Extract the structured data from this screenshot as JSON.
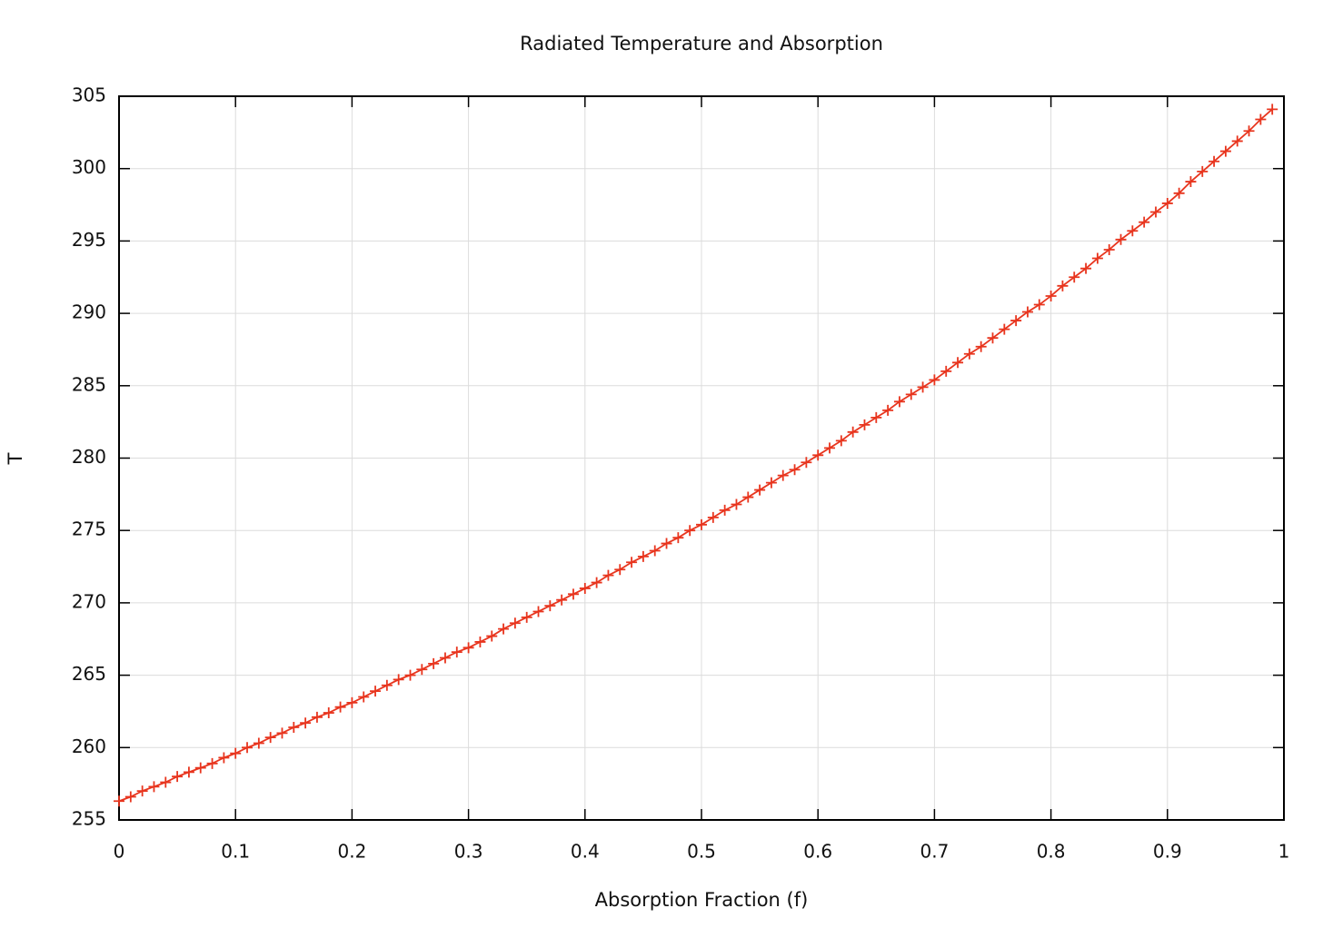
{
  "chart_data": {
    "type": "line",
    "title": "Radiated Temperature and Absorption",
    "xlabel": "Absorption Fraction (f)",
    "ylabel": "T",
    "x": [
      0,
      0.01,
      0.02,
      0.03,
      0.04,
      0.05,
      0.06,
      0.07,
      0.08,
      0.09,
      0.1,
      0.11,
      0.12,
      0.13,
      0.14,
      0.15,
      0.16,
      0.17,
      0.18,
      0.19,
      0.2,
      0.21,
      0.22,
      0.23,
      0.24,
      0.25,
      0.26,
      0.27,
      0.28,
      0.29,
      0.3,
      0.31,
      0.32,
      0.33,
      0.34,
      0.35,
      0.36,
      0.37,
      0.38,
      0.39,
      0.4,
      0.41,
      0.42,
      0.43,
      0.44,
      0.45,
      0.46,
      0.47,
      0.48,
      0.49,
      0.5,
      0.51,
      0.52,
      0.53,
      0.54,
      0.55,
      0.56,
      0.57,
      0.58,
      0.59,
      0.6,
      0.61,
      0.62,
      0.63,
      0.64,
      0.65,
      0.66,
      0.67,
      0.68,
      0.69,
      0.7,
      0.71,
      0.72,
      0.73,
      0.74,
      0.75,
      0.76,
      0.77,
      0.78,
      0.79,
      0.8,
      0.81,
      0.82,
      0.83,
      0.84,
      0.85,
      0.86,
      0.87,
      0.88,
      0.89,
      0.9,
      0.91,
      0.92,
      0.93,
      0.94,
      0.95,
      0.96,
      0.97,
      0.98,
      0.99
    ],
    "series": [
      {
        "color": "#e8351e",
        "marker": "plus",
        "values": [
          256.3,
          256.6,
          257.0,
          257.3,
          257.6,
          258.0,
          258.3,
          258.6,
          258.9,
          259.3,
          259.6,
          260.0,
          260.3,
          260.7,
          261.0,
          261.4,
          261.7,
          262.1,
          262.4,
          262.8,
          263.1,
          263.5,
          263.9,
          264.3,
          264.7,
          265.0,
          265.4,
          265.8,
          266.2,
          266.6,
          266.9,
          267.3,
          267.7,
          268.2,
          268.6,
          269.0,
          269.4,
          269.8,
          270.2,
          270.6,
          271.0,
          271.4,
          271.9,
          272.3,
          272.8,
          273.2,
          273.6,
          274.1,
          274.5,
          275.0,
          275.4,
          275.9,
          276.4,
          276.8,
          277.3,
          277.8,
          278.3,
          278.8,
          279.2,
          279.7,
          280.2,
          280.7,
          281.2,
          281.8,
          282.3,
          282.8,
          283.3,
          283.9,
          284.4,
          284.9,
          285.4,
          286.0,
          286.6,
          287.2,
          287.7,
          288.3,
          288.9,
          289.5,
          290.1,
          290.6,
          291.2,
          291.9,
          292.5,
          293.1,
          293.8,
          294.4,
          295.1,
          295.7,
          296.3,
          297.0,
          297.6,
          298.3,
          299.1,
          299.8,
          300.5,
          301.2,
          301.9,
          302.6,
          303.4,
          304.1
        ]
      }
    ],
    "xlim": [
      0,
      1
    ],
    "xticks": [
      0,
      0.1,
      0.2,
      0.3,
      0.4,
      0.5,
      0.6,
      0.7,
      0.8,
      0.9,
      1
    ],
    "ylim": [
      255,
      305
    ],
    "yticks": [
      255,
      260,
      265,
      270,
      275,
      280,
      285,
      290,
      295,
      300,
      305
    ],
    "grid": true
  }
}
